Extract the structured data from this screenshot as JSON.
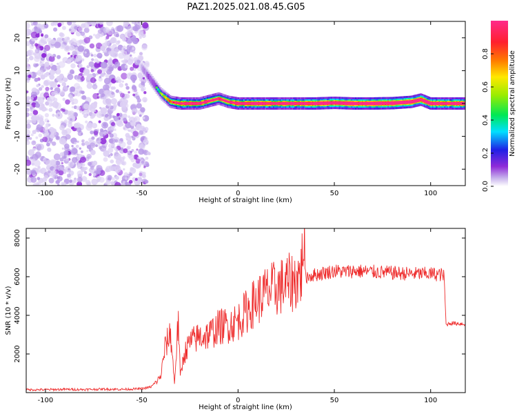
{
  "title": "PAZ1.2025.021.08.45.G05",
  "chart_data": [
    {
      "type": "heatmap",
      "xlabel": "Height of straight line (km)",
      "ylabel": "Frequency (Hz)",
      "xlim": [
        -110,
        118
      ],
      "ylim": [
        -25,
        25
      ],
      "xticks": [
        -100,
        -50,
        0,
        50,
        100
      ],
      "yticks": [
        -20,
        -10,
        0,
        10,
        20
      ],
      "colorbar": {
        "label": "Normalized spectral amplitude",
        "range": [
          0,
          1
        ],
        "ticks": [
          0.0,
          0.2,
          0.4,
          0.6,
          0.8
        ],
        "colors": [
          "#ffffff",
          "#c7b2ec",
          "#8f2bd8",
          "#1f1fe6",
          "#00e0ff",
          "#00e855",
          "#9aec00",
          "#ffe800",
          "#ff7a00",
          "#ff1f2e",
          "#ff2a8a"
        ]
      },
      "noise_region": {
        "x": [
          -110,
          -47
        ],
        "y": [
          -25,
          25
        ],
        "amplitude": 0.1
      },
      "ridge": {
        "x": [
          -50,
          -45,
          -40,
          -35,
          -30,
          -20,
          -10,
          -5,
          0,
          10,
          20,
          30,
          40,
          50,
          60,
          70,
          80,
          90,
          95,
          100,
          110,
          118
        ],
        "frequency": [
          11,
          7,
          3,
          0.5,
          0,
          0,
          1.5,
          0.5,
          0,
          0,
          0,
          0,
          0,
          0.2,
          0,
          0,
          0.1,
          0.5,
          1.2,
          0,
          0,
          0
        ],
        "amplitude": [
          0.15,
          0.25,
          0.35,
          0.55,
          0.8,
          0.75,
          0.65,
          0.7,
          0.8,
          0.85,
          0.8,
          0.85,
          0.9,
          0.9,
          0.95,
          0.95,
          0.95,
          0.9,
          0.85,
          0.9,
          0.85,
          0.9
        ]
      }
    },
    {
      "type": "line",
      "xlabel": "Height of straight line (km)",
      "ylabel": "SNR (10 * v/v)",
      "xlim": [
        -110,
        118
      ],
      "ylim": [
        0,
        8500
      ],
      "xticks": [
        -100,
        -50,
        0,
        50,
        100
      ],
      "yticks": [
        2000,
        4000,
        6000,
        8000
      ],
      "color": "#ee2a2a",
      "series": [
        {
          "x": [
            -110,
            -100,
            -90,
            -80,
            -70,
            -60,
            -50,
            -45,
            -42,
            -40,
            -38,
            -35,
            -33,
            -31,
            -30,
            -28,
            -25,
            -20,
            -15,
            -10,
            -5,
            0,
            5,
            10,
            15,
            20,
            25,
            30,
            33,
            34,
            35,
            40,
            45,
            50,
            55,
            60,
            70,
            80,
            90,
            100,
            106,
            107,
            108,
            110,
            118
          ],
          "values": [
            150,
            150,
            170,
            160,
            180,
            170,
            200,
            300,
            600,
            900,
            2300,
            3100,
            500,
            3800,
            800,
            2000,
            2600,
            2900,
            3000,
            3400,
            3500,
            3700,
            4300,
            4800,
            5200,
            5400,
            5600,
            5800,
            6200,
            8400,
            6000,
            6100,
            6200,
            6300,
            6250,
            6300,
            6250,
            6200,
            6150,
            6150,
            6100,
            6000,
            3500,
            3600,
            3550
          ]
        }
      ]
    }
  ]
}
